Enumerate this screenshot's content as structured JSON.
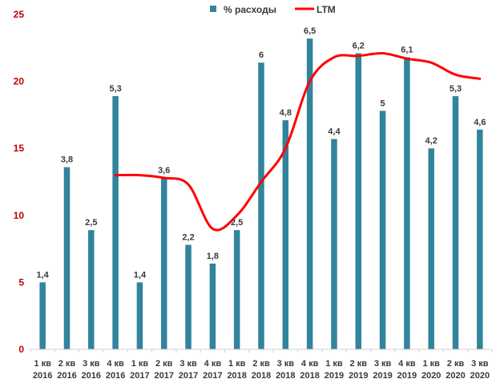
{
  "chart_data": {
    "type": "bar",
    "categories": [
      [
        "1 кв",
        "2016"
      ],
      [
        "2 кв",
        "2016"
      ],
      [
        "3 кв",
        "2016"
      ],
      [
        "4 кв",
        "2016"
      ],
      [
        "1 кв",
        "2017"
      ],
      [
        "2 кв",
        "2017"
      ],
      [
        "3 кв",
        "2017"
      ],
      [
        "4 кв",
        "2017"
      ],
      [
        "1 кв",
        "2018"
      ],
      [
        "2 кв",
        "2018"
      ],
      [
        "3 кв",
        "2018"
      ],
      [
        "4 кв",
        "2018"
      ],
      [
        "1 кв",
        "2019"
      ],
      [
        "2 кв",
        "2019"
      ],
      [
        "3 кв",
        "2019"
      ],
      [
        "4 кв",
        "2019"
      ],
      [
        "1 кв",
        "2020"
      ],
      [
        "2 кв",
        "2020"
      ],
      [
        "3 кв",
        "2020"
      ]
    ],
    "series": [
      {
        "name": "% расходы",
        "type": "bar",
        "color": "#31849b",
        "values": [
          5.0,
          13.6,
          8.9,
          18.9,
          5.0,
          12.8,
          7.8,
          6.4,
          8.9,
          21.4,
          17.1,
          23.2,
          15.7,
          22.1,
          17.8,
          21.8,
          15.0,
          18.9,
          16.4
        ],
        "labels": [
          "1,4",
          "3,8",
          "2,5",
          "5,3",
          "1,4",
          "3,6",
          "2,2",
          "1,8",
          "2,5",
          "6",
          "4,8",
          "6,5",
          "4,4",
          "6,2",
          "5",
          "6,1",
          "4,2",
          "5,3",
          "4,6"
        ]
      },
      {
        "name": "LTM",
        "type": "line",
        "color": "#ff0000",
        "values": [
          null,
          null,
          null,
          13.0,
          13.0,
          12.8,
          12.3,
          9.0,
          10.0,
          12.5,
          15.0,
          20.0,
          21.8,
          21.9,
          22.1,
          21.7,
          21.4,
          20.5,
          20.2
        ]
      }
    ],
    "ylim": [
      0,
      25
    ],
    "yticks": [
      "0",
      "5",
      "10",
      "15",
      "20",
      "25"
    ],
    "grid": false,
    "legend_position": "top"
  }
}
